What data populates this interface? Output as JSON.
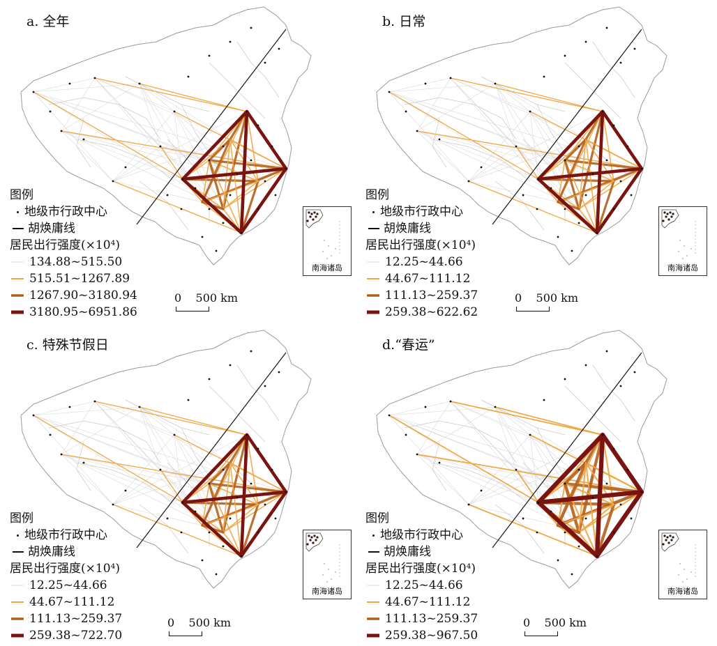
{
  "legend_common": {
    "title": "图例",
    "city_label": "地级市行政中心",
    "huline_label": "胡焕庸线",
    "intensity_title": "居民出行强度(×10⁴)"
  },
  "inset_label": "南海诸岛",
  "scale_label": "0    500 km",
  "colors": {
    "class1": "#d9d9d9",
    "class2": "#f0a844",
    "class3": "#b5611e",
    "class4": "#7a1410",
    "boundary": "#9a9a9a",
    "huline": "#222222"
  },
  "panels": [
    {
      "title": "a. 全年",
      "classes": [
        "134.88~515.50",
        "515.51~1267.89",
        "1267.90~3180.94",
        "3180.95~6951.86"
      ]
    },
    {
      "title": "b. 日常",
      "classes": [
        "12.25~44.66",
        "44.67~111.12",
        "111.13~259.37",
        "259.38~622.62"
      ]
    },
    {
      "title": "c. 特殊节假日",
      "classes": [
        "12.25~44.66",
        "44.67~111.12",
        "111.13~259.37",
        "259.38~722.70"
      ]
    },
    {
      "title": "d.“春运”",
      "classes": [
        "12.25~44.66",
        "44.67~111.12",
        "111.13~259.37",
        "259.38~967.50"
      ]
    }
  ]
}
